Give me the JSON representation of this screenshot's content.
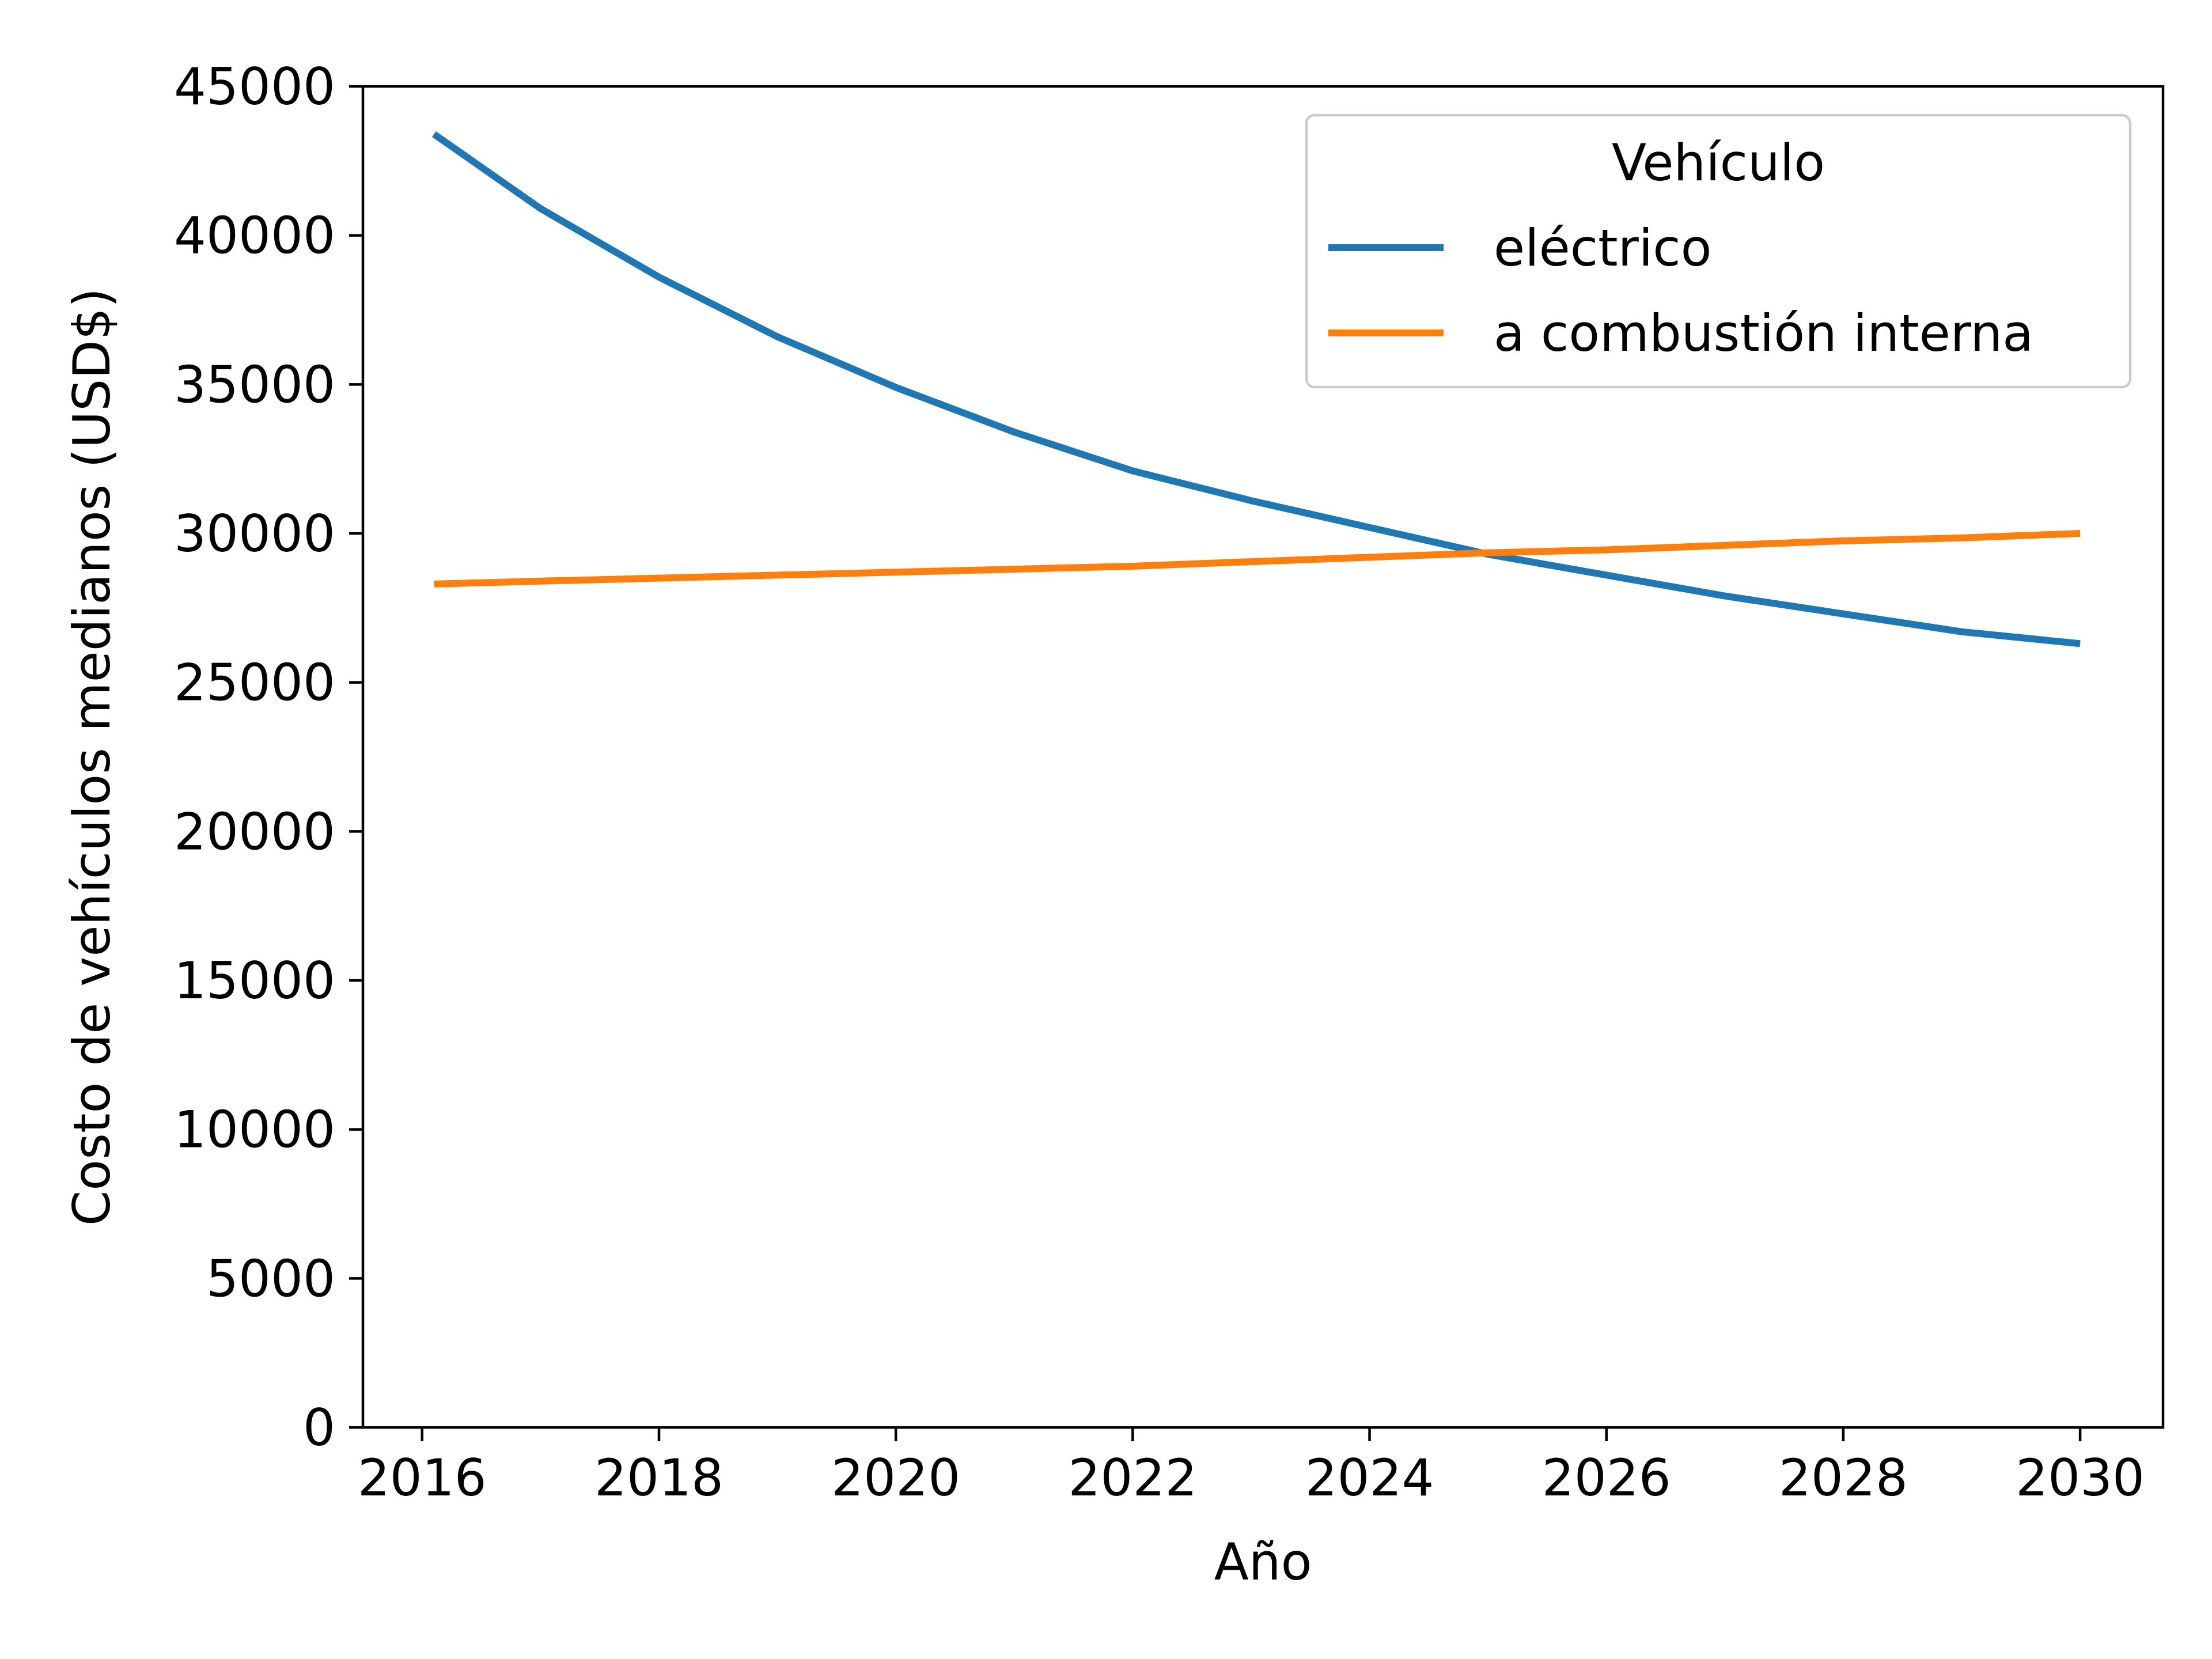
{
  "chart_data": {
    "type": "line",
    "title": "",
    "xlabel": "Año",
    "ylabel": "Costo de vehículos medianos (USD$)",
    "xlim": [
      2015.5,
      2030.7
    ],
    "ylim": [
      0,
      45000
    ],
    "xticks": [
      2016,
      2018,
      2020,
      2022,
      2024,
      2026,
      2028,
      2030
    ],
    "yticks": [
      0,
      5000,
      10000,
      15000,
      20000,
      25000,
      30000,
      35000,
      40000,
      45000
    ],
    "grid": false,
    "legend": {
      "title": "Vehículo",
      "placement": "top-right"
    },
    "series": [
      {
        "name": "eléctrico",
        "color": "#1f77b4",
        "x": [
          2016.1,
          2017,
          2018,
          2019,
          2020,
          2021,
          2022,
          2023,
          2024,
          2025,
          2026,
          2027,
          2028,
          2029,
          2030
        ],
        "y": [
          43400,
          40900,
          38600,
          36600,
          34900,
          33400,
          32100,
          31100,
          30200,
          29300,
          28600,
          27900,
          27300,
          26700,
          26300
        ]
      },
      {
        "name": "a combustión interna",
        "color": "#ff7f0e",
        "x": [
          2016.1,
          2017,
          2018,
          2019,
          2020,
          2021,
          2022,
          2023,
          2024,
          2025,
          2026,
          2027,
          2028,
          2029,
          2030
        ],
        "y": [
          28300,
          28400,
          28500,
          28600,
          28700,
          28800,
          28900,
          29050,
          29200,
          29350,
          29450,
          29600,
          29750,
          29850,
          30000
        ]
      }
    ]
  }
}
